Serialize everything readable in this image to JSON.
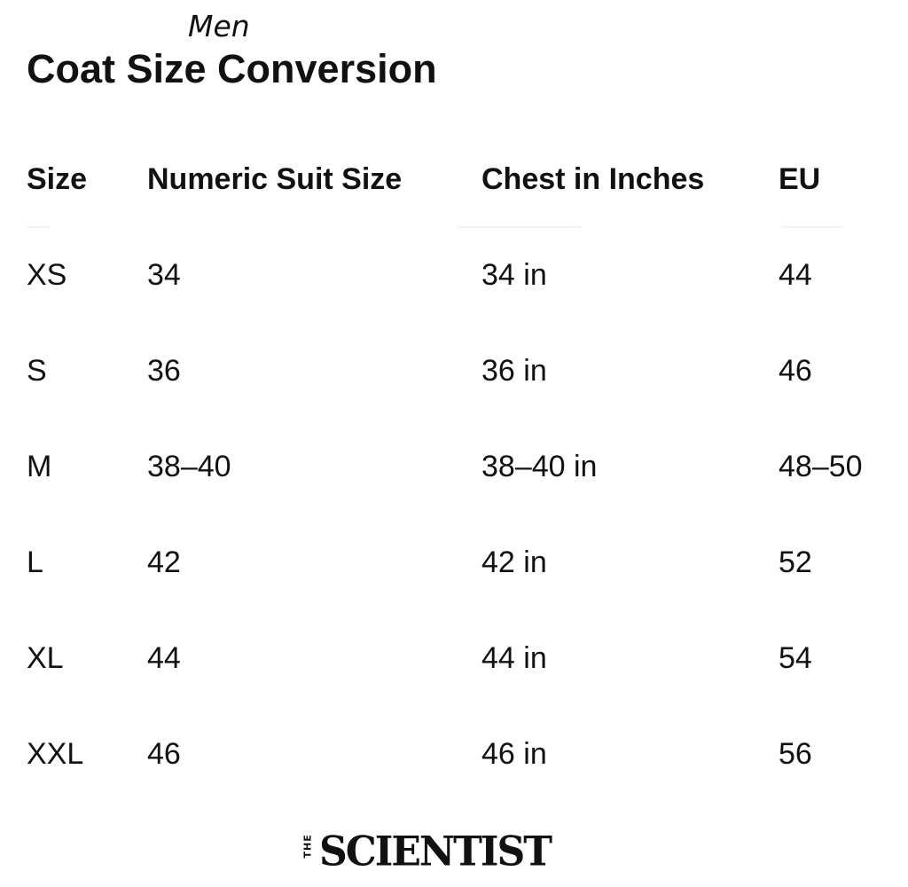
{
  "header": {
    "subtitle": "Men",
    "title": "Coat Size Conversion"
  },
  "table": {
    "columns": [
      "Size",
      "Numeric Suit Size",
      "Chest in Inches",
      "EU"
    ],
    "rows": [
      [
        "XS",
        "34",
        "34 in",
        "44"
      ],
      [
        "S",
        "36",
        "36 in",
        "46"
      ],
      [
        "M",
        "38–40",
        "38–40 in",
        "48–50"
      ],
      [
        "L",
        "42",
        "42 in",
        "52"
      ],
      [
        "XL",
        "44",
        "44 in",
        "54"
      ],
      [
        "XXL",
        "46",
        "46 in",
        "56"
      ]
    ]
  },
  "footer": {
    "logo_the": "THE",
    "logo_word": "SCIENTIST"
  }
}
